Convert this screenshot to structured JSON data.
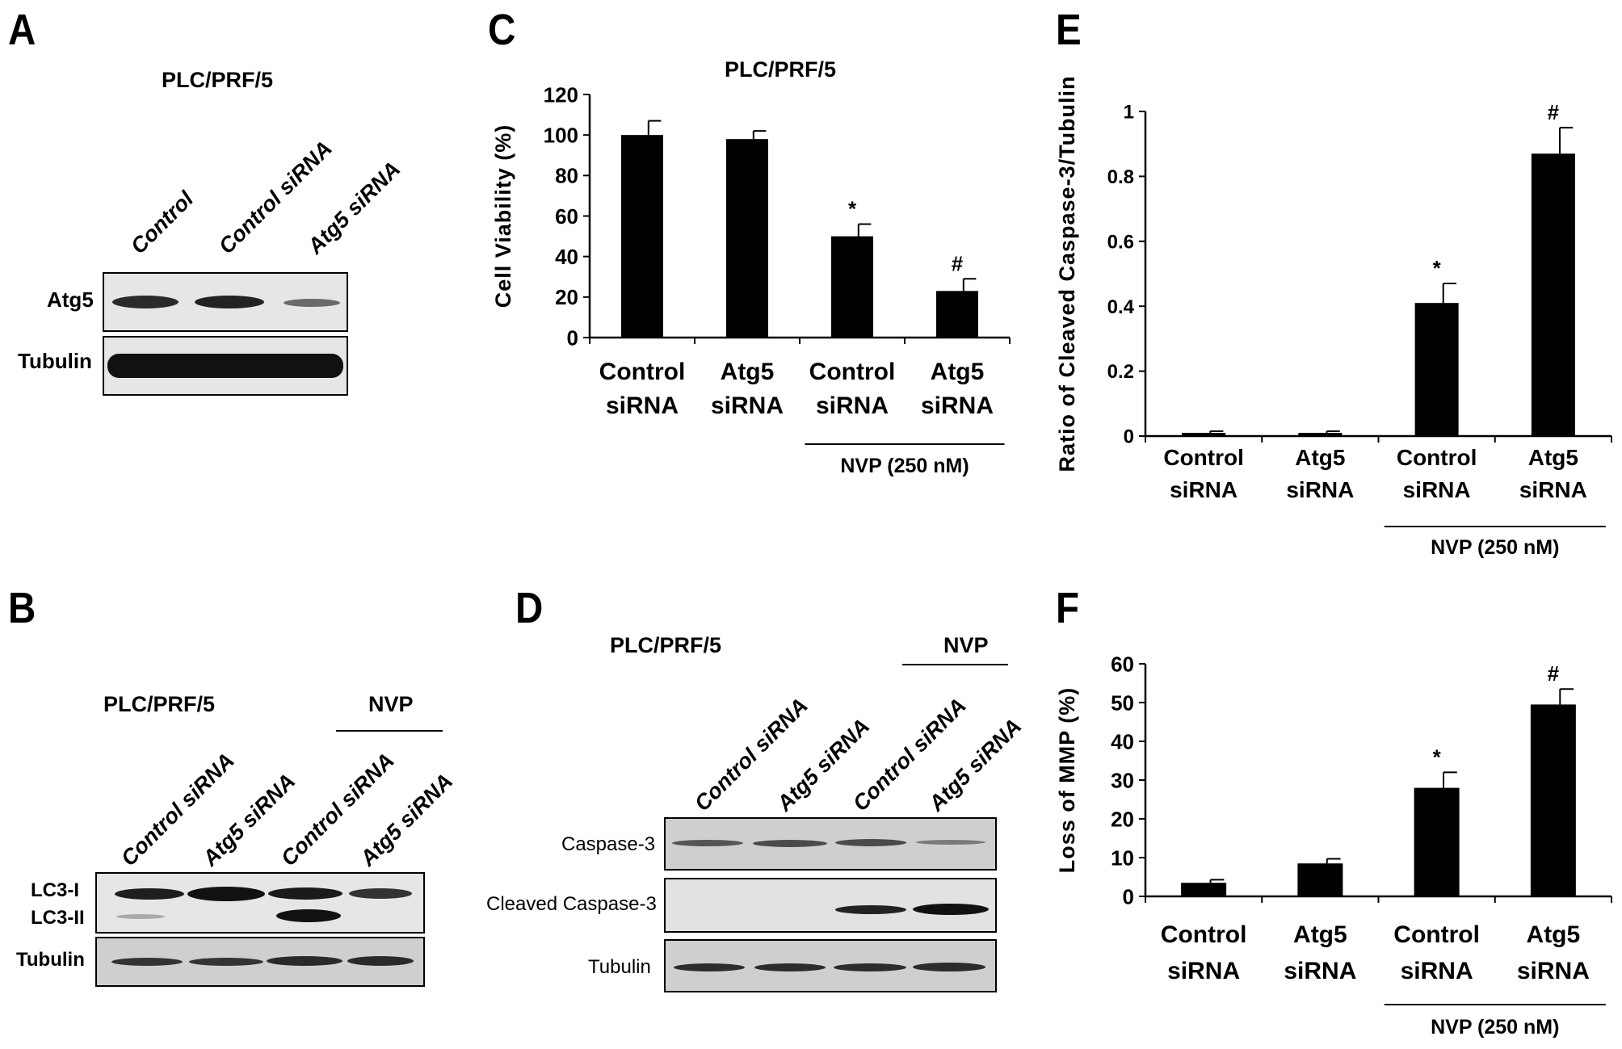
{
  "panels": {
    "A": {
      "letter": "A",
      "cell_line": "PLC/PRF/5",
      "lanes": [
        "Control",
        "Control siRNA",
        "Atg5 siRNA"
      ],
      "rows": [
        "Atg5",
        "Tubulin"
      ]
    },
    "B": {
      "letter": "B",
      "cell_line": "PLC/PRF/5",
      "treatment": "NVP",
      "lanes": [
        "Control siRNA",
        "Atg5 siRNA",
        "Control siRNA",
        "Atg5 siRNA"
      ],
      "rows": [
        "LC3-I",
        "LC3-II",
        "Tubulin"
      ]
    },
    "D": {
      "letter": "D",
      "cell_line": "PLC/PRF/5",
      "treatment": "NVP",
      "lanes": [
        "Control siRNA",
        "Atg5 siRNA",
        "Control siRNA",
        "Atg5 siRNA"
      ],
      "rows": [
        "Caspase-3",
        "Cleaved Caspase-3",
        "Tubulin"
      ]
    },
    "C": {
      "letter": "C"
    },
    "E": {
      "letter": "E"
    },
    "F": {
      "letter": "F"
    }
  },
  "chart_data": [
    {
      "panel": "C",
      "type": "bar",
      "title": "PLC/PRF/5",
      "ylabel": "Cell Viability (%)",
      "xlabel": "",
      "categories": [
        "Control siRNA",
        "Atg5 siRNA",
        "Control siRNA",
        "Atg5 siRNA"
      ],
      "values": [
        100,
        98,
        50,
        23
      ],
      "errors": [
        7,
        4,
        6,
        6
      ],
      "annotations": [
        "",
        "",
        "*",
        "#"
      ],
      "ylim": [
        0,
        120
      ],
      "yticks": [
        0,
        20,
        40,
        60,
        80,
        100,
        120
      ],
      "group_label": "NVP (250 nM)",
      "group_categories": [
        2,
        3
      ],
      "color": "#000000"
    },
    {
      "panel": "E",
      "type": "bar",
      "title": "",
      "ylabel": "Ratio of Cleaved Caspase-3/Tubulin",
      "xlabel": "",
      "categories": [
        "Control siRNA",
        "Atg5 siRNA",
        "Control siRNA",
        "Atg5 siRNA"
      ],
      "values": [
        0.01,
        0.01,
        0.41,
        0.87
      ],
      "errors": [
        0.005,
        0.005,
        0.06,
        0.08
      ],
      "annotations": [
        "",
        "",
        "*",
        "#"
      ],
      "ylim": [
        0,
        1
      ],
      "yticks": [
        0,
        0.2,
        0.4,
        0.6,
        0.8,
        1
      ],
      "group_label": "NVP (250 nM)",
      "group_categories": [
        2,
        3
      ],
      "color": "#000000"
    },
    {
      "panel": "F",
      "type": "bar",
      "title": "",
      "ylabel": "Loss of MMP (%)",
      "xlabel": "",
      "categories": [
        "Control siRNA",
        "Atg5 siRNA",
        "Control siRNA",
        "Atg5 siRNA"
      ],
      "values": [
        3.5,
        8.5,
        28,
        49.5
      ],
      "errors": [
        0.8,
        1.2,
        4,
        4
      ],
      "annotations": [
        "",
        "",
        "*",
        "#"
      ],
      "ylim": [
        0,
        60
      ],
      "yticks": [
        0,
        10,
        20,
        30,
        40,
        50,
        60
      ],
      "group_label": "NVP (250 nM)",
      "group_categories": [
        2,
        3
      ],
      "color": "#000000"
    }
  ]
}
